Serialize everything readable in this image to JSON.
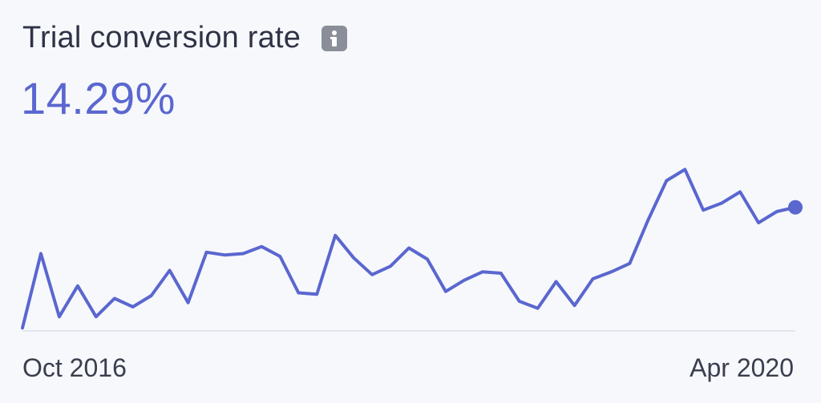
{
  "metric": {
    "title": "Trial conversion rate",
    "value": "14.29%",
    "info_icon": "info-icon"
  },
  "colors": {
    "line": "#5a67cf",
    "title": "#2f3345",
    "baseline": "#e4e6ee",
    "icon_bg": "#8a8e99"
  },
  "chart_data": {
    "type": "line",
    "title": "Trial conversion rate",
    "x_start_label": "Oct 2016",
    "x_end_label": "Apr 2020",
    "xlabel": "",
    "ylabel": "",
    "grid": false,
    "series": [
      {
        "values": [
          0.5,
          27,
          4.5,
          15.5,
          4.5,
          11,
          8,
          12,
          21,
          9.5,
          27.5,
          26.5,
          27,
          29.5,
          26,
          13,
          12.5,
          33.5,
          25.5,
          19.5,
          22.5,
          29,
          25,
          13.5,
          17.5,
          20.5,
          20,
          10,
          7.5,
          17,
          8.5,
          18,
          20.5,
          23.5,
          39,
          53,
          57,
          42.5,
          45,
          49,
          38,
          42,
          43.5
        ]
      }
    ],
    "ylim": [
      0,
      70
    ]
  }
}
